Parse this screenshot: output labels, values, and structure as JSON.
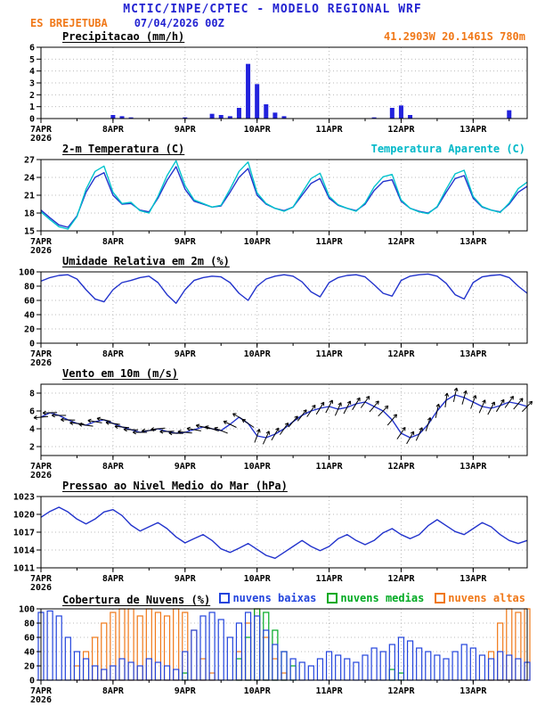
{
  "header": {
    "title": "MCTIC/INPE/CPTEC - MODELO REGIONAL WRF",
    "station": "ES BREJETUBA",
    "run": "07/04/2026 00Z",
    "coords": "41.2903W 20.1461S 780m"
  },
  "colors": {
    "header_blue": "#2323d1",
    "orange": "#f07818",
    "cyan": "#00b8c8",
    "line_blue": "#2233cc",
    "green": "#00aa22",
    "black": "#000000"
  },
  "panels": {
    "precip": {
      "title": "Precipitacao (mm/h)"
    },
    "temp": {
      "title": "2-m Temperatura (C)",
      "right_label": "Temperatura Aparente (C)"
    },
    "humidity": {
      "title": "Umidade Relativa em 2m (%)"
    },
    "wind": {
      "title": "Vento em 10m (m/s)"
    },
    "pressure": {
      "title": "Pressao ao Nivel Medio do Mar (hPa)"
    },
    "clouds": {
      "title": "Cobertura de Nuvens (%)",
      "legend": [
        {
          "label": "nuvens baixas",
          "color": "#2244dd"
        },
        {
          "label": "nuvens medias",
          "color": "#00aa22"
        },
        {
          "label": "nuvens altas",
          "color": "#f07818"
        }
      ]
    }
  },
  "chart_data": {
    "x_axis": {
      "hours_start": 0,
      "hours_step": 3,
      "count": 55,
      "domain": [
        0,
        162
      ],
      "ticks": [
        {
          "h": 0,
          "label": "7APR",
          "sublabel": "2026"
        },
        {
          "h": 24,
          "label": "8APR"
        },
        {
          "h": 48,
          "label": "9APR"
        },
        {
          "h": 72,
          "label": "10APR"
        },
        {
          "h": 96,
          "label": "11APR"
        },
        {
          "h": 120,
          "label": "12APR"
        },
        {
          "h": 144,
          "label": "13APR"
        }
      ]
    },
    "panels": [
      {
        "id": "precip",
        "type": "bar",
        "title": "Precipitacao (mm/h)",
        "ylim": [
          0,
          6
        ],
        "yticks": [
          0,
          1,
          2,
          3,
          4,
          5,
          6
        ],
        "series": [
          {
            "name": "precipitacao",
            "color": "#2222dd",
            "values": [
              0,
              0,
              0,
              0,
              0,
              0,
              0,
              0,
              0.3,
              0.2,
              0.1,
              0,
              0,
              0,
              0,
              0,
              0.1,
              0,
              0,
              0.4,
              0.3,
              0.2,
              0.9,
              4.6,
              2.9,
              1.2,
              0.5,
              0.2,
              0,
              0,
              0,
              0,
              0,
              0,
              0,
              0,
              0,
              0.1,
              0,
              0.9,
              1.1,
              0.3,
              0,
              0,
              0,
              0,
              0,
              0,
              0,
              0,
              0,
              0,
              0.7,
              0,
              0
            ]
          }
        ]
      },
      {
        "id": "temp",
        "type": "line",
        "title": "2-m Temperatura (C)",
        "ylim": [
          15,
          27
        ],
        "yticks": [
          15,
          18,
          21,
          24,
          27
        ],
        "series": [
          {
            "name": "temperatura 2m",
            "color": "#2233cc",
            "values": [
              18.5,
              17.2,
              16.0,
              15.6,
              17.5,
              21.5,
              24.0,
              24.8,
              21.0,
              19.5,
              19.6,
              18.5,
              18.2,
              20.5,
              23.5,
              25.8,
              22.0,
              20.0,
              19.5,
              19.0,
              19.2,
              21.5,
              24.0,
              25.5,
              21.0,
              19.5,
              18.8,
              18.4,
              19.0,
              21.0,
              23.0,
              23.8,
              20.5,
              19.3,
              18.8,
              18.4,
              19.5,
              21.8,
              23.3,
              23.6,
              20.0,
              18.8,
              18.3,
              18.0,
              19.0,
              21.5,
              23.8,
              24.3,
              20.5,
              19.0,
              18.5,
              18.2,
              19.5,
              21.5,
              22.5
            ]
          },
          {
            "name": "temperatura aparente",
            "color": "#00c3cc",
            "values": [
              18.2,
              16.9,
              15.7,
              15.3,
              17.4,
              22.0,
              25.0,
              25.9,
              21.5,
              19.6,
              19.8,
              18.4,
              18.0,
              20.8,
              24.3,
              26.8,
              22.6,
              20.2,
              19.6,
              19.0,
              19.3,
              22.0,
              25.0,
              26.6,
              21.4,
              19.6,
              18.8,
              18.3,
              19.0,
              21.4,
              23.8,
              24.7,
              20.8,
              19.4,
              18.8,
              18.3,
              19.7,
              22.4,
              24.1,
              24.5,
              20.2,
              18.8,
              18.2,
              17.9,
              19.1,
              22.0,
              24.6,
              25.2,
              20.8,
              19.1,
              18.5,
              18.1,
              19.7,
              22.1,
              23.2
            ]
          }
        ]
      },
      {
        "id": "humidity",
        "type": "line",
        "title": "Umidade Relativa em 2m (%)",
        "ylim": [
          0,
          100
        ],
        "yticks": [
          0,
          20,
          40,
          60,
          80,
          100
        ],
        "series": [
          {
            "name": "umidade relativa",
            "color": "#2233cc",
            "values": [
              87,
              92,
              95,
              96,
              90,
              75,
              62,
              58,
              75,
              85,
              88,
              92,
              94,
              85,
              68,
              56,
              75,
              88,
              92,
              94,
              93,
              85,
              70,
              60,
              80,
              90,
              94,
              96,
              94,
              86,
              72,
              65,
              85,
              92,
              95,
              96,
              93,
              82,
              70,
              66,
              88,
              94,
              96,
              97,
              94,
              84,
              68,
              62,
              85,
              93,
              95,
              96,
              92,
              80,
              70
            ]
          }
        ]
      },
      {
        "id": "wind",
        "type": "line",
        "title": "Vento em 10m (m/s)",
        "ylim": [
          1,
          9
        ],
        "yticks": [
          2,
          4,
          6,
          8
        ],
        "series": [
          {
            "name": "vento 10m",
            "color": "#2233cc",
            "values": [
              5.3,
              5.8,
              5.5,
              5.0,
              4.6,
              4.4,
              4.8,
              5.0,
              4.6,
              4.2,
              3.9,
              3.6,
              3.8,
              4.0,
              3.7,
              3.5,
              3.6,
              3.9,
              4.2,
              4.0,
              3.8,
              4.5,
              5.3,
              4.6,
              3.2,
              3.0,
              3.4,
              4.0,
              4.8,
              5.5,
              6.0,
              6.3,
              6.5,
              6.2,
              6.4,
              6.8,
              7.0,
              6.5,
              6.0,
              5.0,
              3.5,
              3.0,
              3.4,
              4.5,
              6.0,
              7.2,
              7.8,
              7.5,
              7.0,
              6.5,
              6.3,
              6.6,
              7.0,
              6.8,
              6.5
            ]
          }
        ],
        "barbs": {
          "color": "#000000",
          "directions": [
            185,
            182,
            180,
            178,
            175,
            172,
            170,
            168,
            172,
            175,
            178,
            180,
            183,
            186,
            182,
            178,
            174,
            170,
            166,
            162,
            158,
            154,
            150,
            146,
            70,
            65,
            60,
            55,
            50,
            52,
            55,
            58,
            62,
            66,
            62,
            58,
            54,
            50,
            46,
            50,
            55,
            60,
            65,
            72,
            78,
            82,
            78,
            74,
            70,
            66,
            62,
            58,
            54,
            50,
            46
          ]
        }
      },
      {
        "id": "pressure",
        "type": "line",
        "title": "Pressao ao Nivel Medio do Mar (hPa)",
        "ylim": [
          1011,
          1023
        ],
        "yticks": [
          1011,
          1014,
          1017,
          1020,
          1023
        ],
        "series": [
          {
            "name": "pressao nivel medio do mar",
            "color": "#2233cc",
            "values": [
              1019.5,
              1020.5,
              1021.2,
              1020.4,
              1019.2,
              1018.4,
              1019.2,
              1020.4,
              1020.8,
              1019.8,
              1018.2,
              1017.2,
              1017.9,
              1018.6,
              1017.6,
              1016.2,
              1015.2,
              1015.9,
              1016.6,
              1015.6,
              1014.2,
              1013.6,
              1014.3,
              1015.1,
              1014.1,
              1013.1,
              1012.6,
              1013.6,
              1014.6,
              1015.6,
              1014.6,
              1013.9,
              1014.6,
              1015.9,
              1016.6,
              1015.6,
              1014.9,
              1015.6,
              1016.9,
              1017.6,
              1016.6,
              1015.9,
              1016.6,
              1018.1,
              1019.1,
              1018.1,
              1017.1,
              1016.6,
              1017.6,
              1018.6,
              1017.9,
              1016.6,
              1015.6,
              1015.1,
              1015.6
            ]
          }
        ]
      },
      {
        "id": "clouds",
        "type": "outlinebar",
        "title": "Cobertura de Nuvens (%)",
        "ylim": [
          0,
          100
        ],
        "yticks": [
          0,
          20,
          40,
          60,
          80,
          100
        ],
        "series": [
          {
            "name": "nuvens altas",
            "color": "#f07818",
            "values": [
              0,
              0,
              0,
              0,
              20,
              40,
              60,
              80,
              95,
              100,
              100,
              90,
              100,
              95,
              90,
              100,
              95,
              70,
              30,
              10,
              0,
              0,
              40,
              80,
              100,
              60,
              30,
              10,
              0,
              0,
              0,
              0,
              0,
              0,
              0,
              0,
              0,
              0,
              0,
              0,
              0,
              0,
              0,
              0,
              0,
              0,
              0,
              0,
              0,
              0,
              40,
              80,
              100,
              95,
              100
            ]
          },
          {
            "name": "nuvens medias",
            "color": "#00aa22",
            "values": [
              0,
              0,
              0,
              0,
              0,
              0,
              0,
              0,
              0,
              0,
              0,
              0,
              0,
              0,
              0,
              0,
              10,
              0,
              0,
              0,
              0,
              0,
              30,
              60,
              100,
              95,
              70,
              40,
              20,
              0,
              0,
              0,
              0,
              0,
              0,
              0,
              0,
              0,
              0,
              15,
              10,
              0,
              0,
              0,
              0,
              0,
              0,
              0,
              0,
              0,
              0,
              0,
              0,
              0,
              0
            ]
          },
          {
            "name": "nuvens baixas",
            "color": "#2244dd",
            "values": [
              95,
              97,
              90,
              60,
              40,
              30,
              20,
              15,
              20,
              30,
              25,
              20,
              30,
              25,
              20,
              15,
              40,
              70,
              90,
              95,
              85,
              60,
              80,
              95,
              90,
              70,
              50,
              40,
              30,
              25,
              20,
              30,
              40,
              35,
              30,
              25,
              35,
              45,
              40,
              50,
              60,
              55,
              45,
              40,
              35,
              30,
              40,
              50,
              45,
              35,
              30,
              40,
              35,
              30,
              25
            ]
          }
        ]
      }
    ]
  }
}
